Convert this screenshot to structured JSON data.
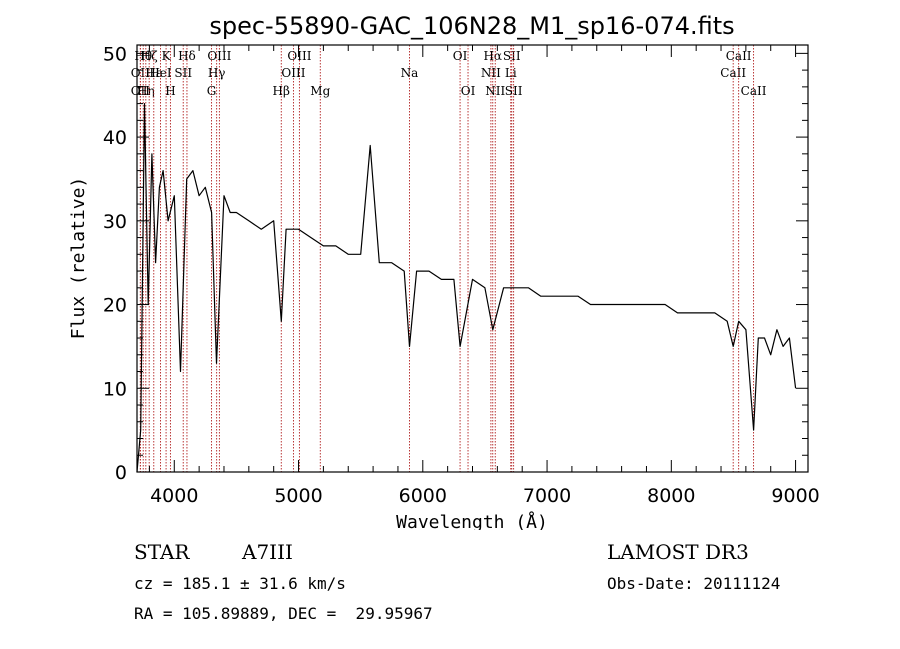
{
  "chart_data": {
    "type": "line",
    "title": "spec-55890-GAC_106N28_M1_sp16-074.fits",
    "xlabel": "Wavelength (Å)",
    "ylabel": "Flux (relative)",
    "xlim": [
      3700,
      9100
    ],
    "ylim": [
      0,
      51
    ],
    "xticks": [
      4000,
      5000,
      6000,
      7000,
      8000,
      9000
    ],
    "yticks": [
      0,
      10,
      20,
      30,
      40,
      50
    ],
    "series": [
      {
        "name": "spectrum",
        "x": [
          3700,
          3730,
          3760,
          3790,
          3820,
          3850,
          3880,
          3910,
          3950,
          4000,
          4050,
          4100,
          4150,
          4200,
          4250,
          4300,
          4340,
          4400,
          4450,
          4500,
          4600,
          4700,
          4800,
          4861,
          4900,
          5000,
          5100,
          5200,
          5300,
          5400,
          5500,
          5577,
          5650,
          5750,
          5850,
          5893,
          5950,
          6050,
          6150,
          6250,
          6300,
          6400,
          6500,
          6563,
          6650,
          6750,
          6850,
          6950,
          7050,
          7150,
          7250,
          7350,
          7450,
          7550,
          7650,
          7750,
          7850,
          7950,
          8050,
          8150,
          8250,
          8350,
          8450,
          8498,
          8542,
          8600,
          8662,
          8700,
          8750,
          8800,
          8850,
          8900,
          8950,
          9000
        ],
        "y": [
          0,
          5,
          44,
          20,
          38,
          25,
          34,
          36,
          30,
          33,
          12,
          35,
          36,
          33,
          34,
          31,
          13,
          33,
          31,
          31,
          30,
          29,
          30,
          18,
          29,
          29,
          28,
          27,
          27,
          26,
          26,
          39,
          25,
          25,
          24,
          15,
          24,
          24,
          23,
          23,
          15,
          23,
          22,
          17,
          22,
          22,
          22,
          21,
          21,
          21,
          21,
          20,
          20,
          20,
          20,
          20,
          20,
          20,
          19,
          19,
          19,
          19,
          18,
          15,
          18,
          17,
          5,
          16,
          16,
          14,
          17,
          15,
          16,
          10
        ]
      }
    ],
    "line_markers": [
      {
        "wavelength": 3727,
        "label": "OII",
        "row": 2
      },
      {
        "wavelength": 3727,
        "label": "OII",
        "row": 3
      },
      {
        "wavelength": 3750,
        "label": "Hθ",
        "row": 1
      },
      {
        "wavelength": 3771,
        "label": "Hη",
        "row": 3
      },
      {
        "wavelength": 3798,
        "label": "Hζ",
        "row": 1
      },
      {
        "wavelength": 3835,
        "label": "Hε",
        "row": 2
      },
      {
        "wavelength": 3889,
        "label": "HeI",
        "row": 2
      },
      {
        "wavelength": 3934,
        "label": "K",
        "row": 1
      },
      {
        "wavelength": 3969,
        "label": "H",
        "row": 3
      },
      {
        "wavelength": 4072,
        "label": "SII",
        "row": 2
      },
      {
        "wavelength": 4102,
        "label": "Hδ",
        "row": 1
      },
      {
        "wavelength": 4300,
        "label": "G",
        "row": 3
      },
      {
        "wavelength": 4341,
        "label": "Hγ",
        "row": 2
      },
      {
        "wavelength": 4363,
        "label": "OIII",
        "row": 1
      },
      {
        "wavelength": 4861,
        "label": "Hβ",
        "row": 3
      },
      {
        "wavelength": 4959,
        "label": "OIII",
        "row": 2
      },
      {
        "wavelength": 5007,
        "label": "OIII",
        "row": 1
      },
      {
        "wavelength": 5175,
        "label": "Mg",
        "row": 3
      },
      {
        "wavelength": 5893,
        "label": "Na",
        "row": 2
      },
      {
        "wavelength": 6300,
        "label": "OI",
        "row": 1
      },
      {
        "wavelength": 6364,
        "label": "OI",
        "row": 3
      },
      {
        "wavelength": 6548,
        "label": "NII",
        "row": 2
      },
      {
        "wavelength": 6563,
        "label": "Hα",
        "row": 1
      },
      {
        "wavelength": 6583,
        "label": "NII",
        "row": 3
      },
      {
        "wavelength": 6708,
        "label": "Li",
        "row": 2
      },
      {
        "wavelength": 6716,
        "label": "SII",
        "row": 1
      },
      {
        "wavelength": 6731,
        "label": "SII",
        "row": 3
      },
      {
        "wavelength": 8498,
        "label": "CaII",
        "row": 2
      },
      {
        "wavelength": 8542,
        "label": "CaII",
        "row": 1
      },
      {
        "wavelength": 8662,
        "label": "CaII",
        "row": 3
      }
    ],
    "marker_color": "#b22222",
    "line_color": "#000000"
  },
  "info": {
    "class_label": "STAR",
    "subclass": "A7III",
    "survey": "LAMOST DR3",
    "cz": "cz = 185.1 ± 31.6 km/s",
    "obs_date": "Obs-Date: 20111124",
    "radec": "RA = 105.89889, DEC =  29.95967"
  }
}
